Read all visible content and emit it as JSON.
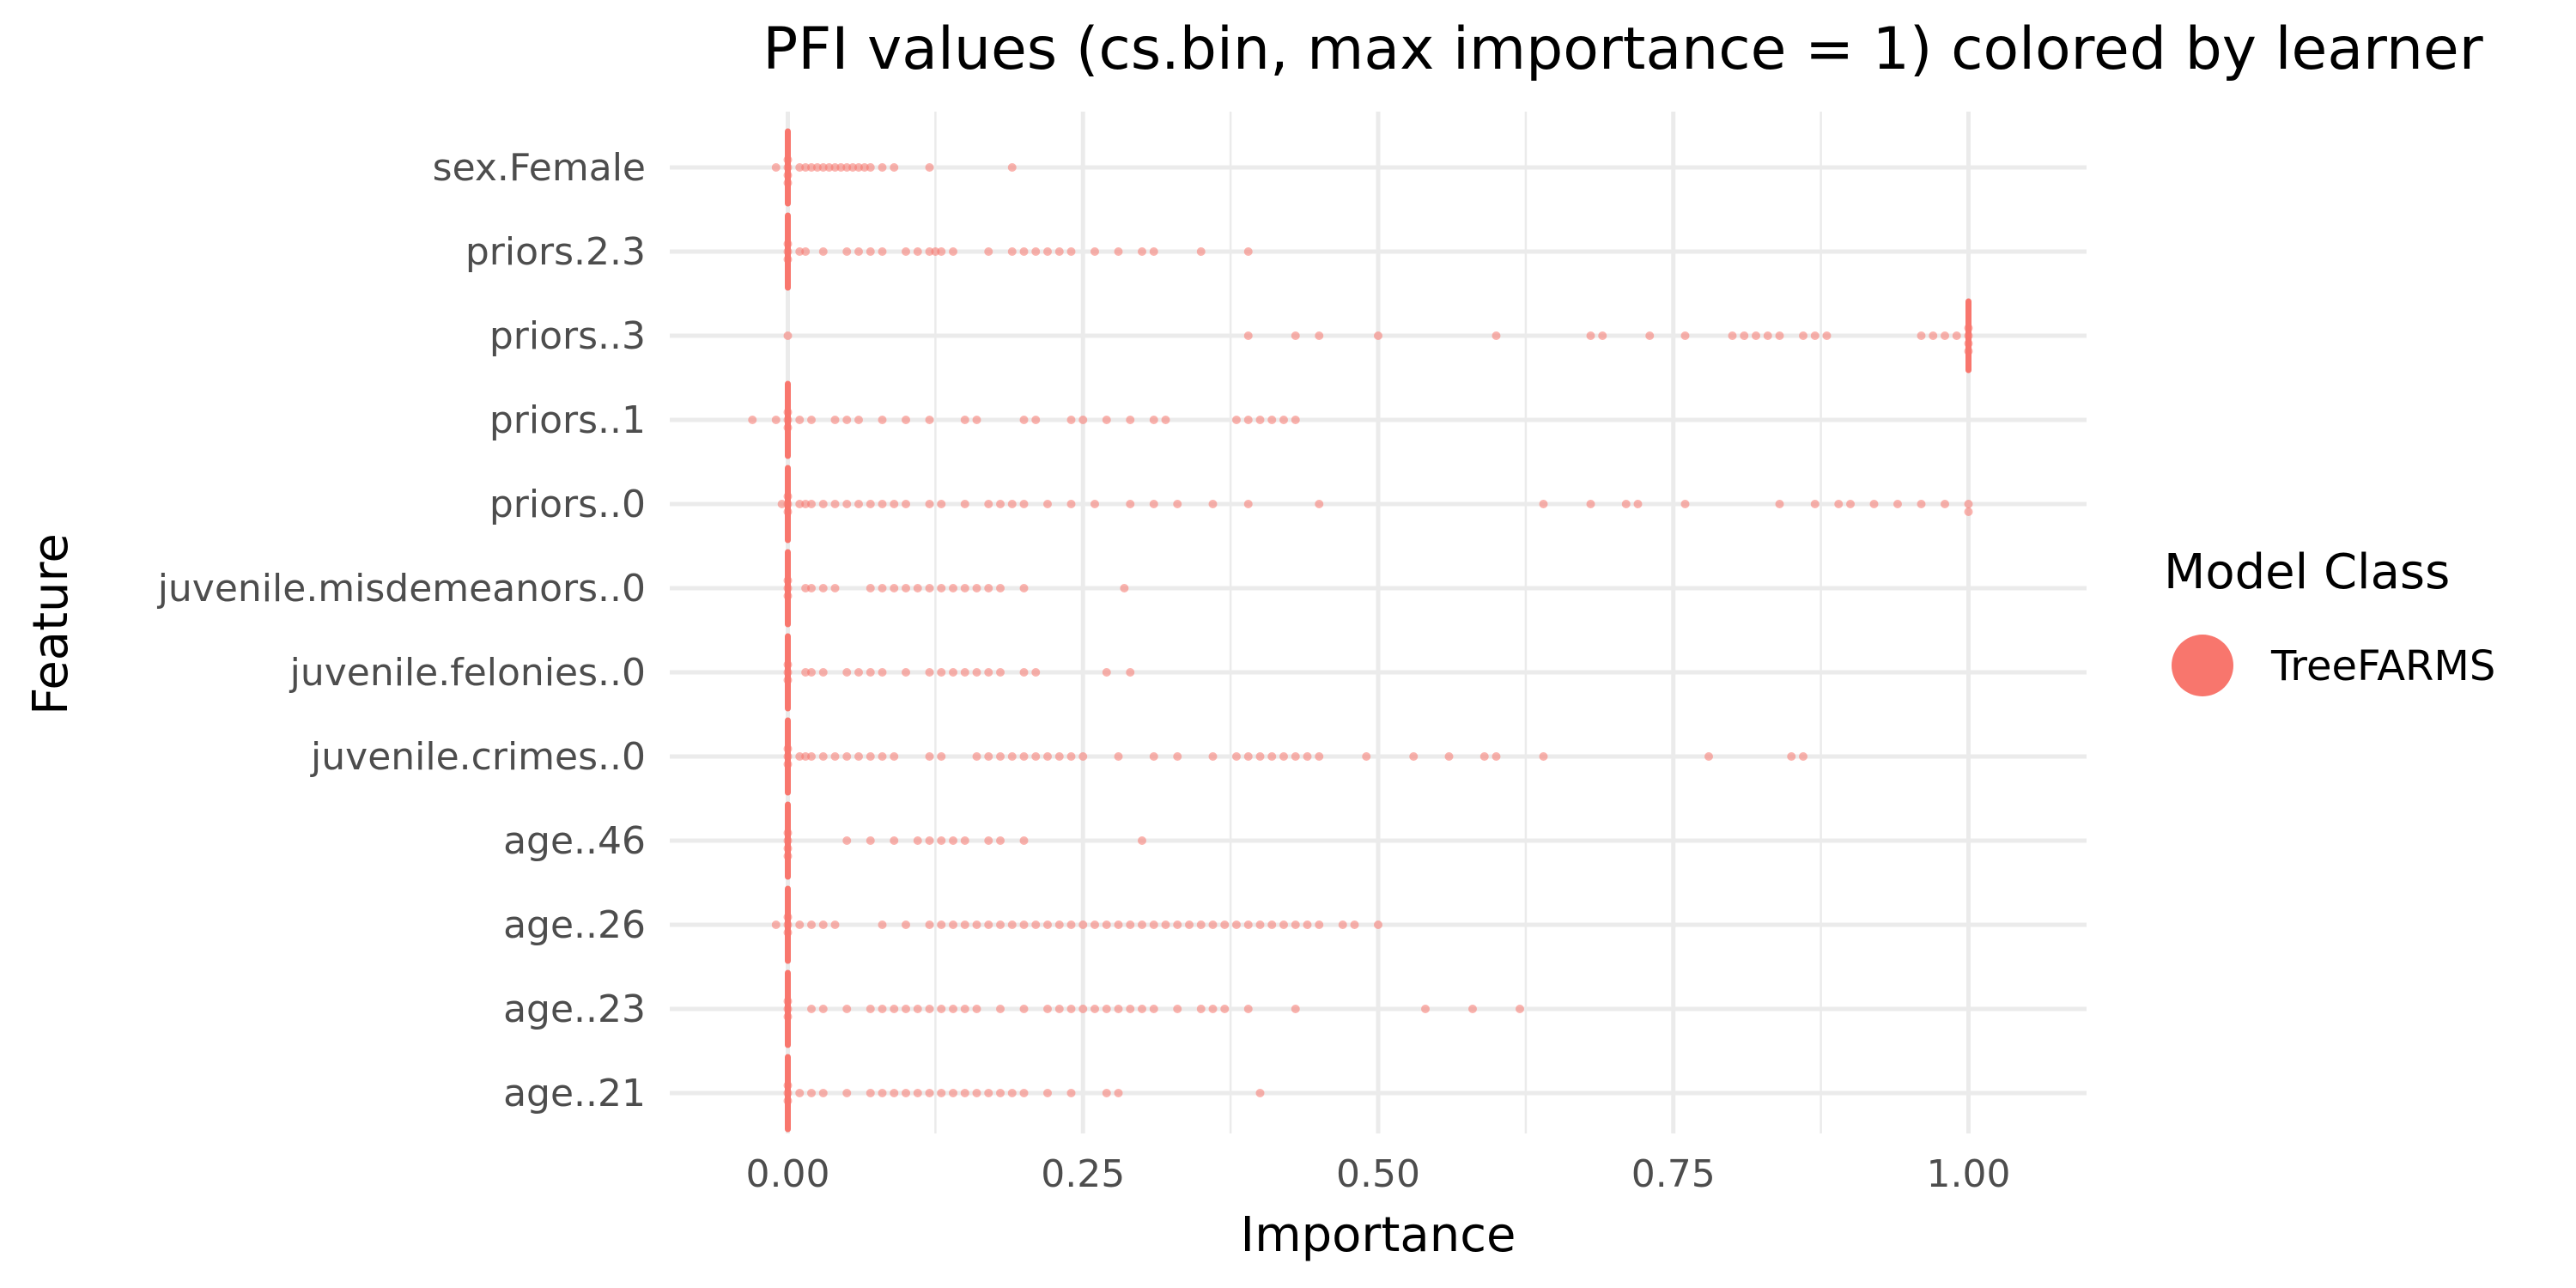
{
  "chart_data": {
    "type": "scatter",
    "title": "PFI values (cs.bin, max importance = 1) colored by learner",
    "xlabel": "Importance",
    "ylabel": "Feature",
    "xlim": [
      -0.1,
      1.1
    ],
    "x_ticks": [
      0.0,
      0.25,
      0.5,
      0.75,
      1.0
    ],
    "x_tick_labels": [
      "0.00",
      "0.25",
      "0.50",
      "0.75",
      "1.00"
    ],
    "categories": [
      "sex.Female",
      "priors.2.3",
      "priors..3",
      "priors..1",
      "priors..0",
      "juvenile.misdemeanors..0",
      "juvenile.felonies..0",
      "juvenile.crimes..0",
      "age..46",
      "age..26",
      "age..23",
      "age..21"
    ],
    "grid": true,
    "legend": {
      "title": "Model Class",
      "placement": "right",
      "entries": [
        {
          "name": "TreeFARMS",
          "color": "#F8766D"
        }
      ]
    },
    "series": [
      {
        "name": "TreeFARMS",
        "color": "#F8766D",
        "points": {
          "sex.Female": [
            0,
            0,
            0,
            0,
            -0.01,
            0.01,
            0.015,
            0.02,
            0.025,
            0.03,
            0.035,
            0.04,
            0.045,
            0.05,
            0.055,
            0.06,
            0.065,
            0.07,
            0.08,
            0.09,
            0.12,
            0.19
          ],
          "priors.2.3": [
            0,
            0,
            0,
            0.01,
            0.015,
            0.03,
            0.05,
            0.06,
            0.07,
            0.08,
            0.1,
            0.11,
            0.12,
            0.125,
            0.13,
            0.14,
            0.17,
            0.19,
            0.2,
            0.21,
            0.22,
            0.23,
            0.24,
            0.26,
            0.28,
            0.3,
            0.31,
            0.35,
            0.39
          ],
          "priors..3": [
            0,
            0.39,
            0.43,
            0.45,
            0.5,
            0.6,
            0.68,
            0.69,
            0.73,
            0.76,
            0.8,
            0.81,
            0.82,
            0.83,
            0.84,
            0.86,
            0.87,
            0.88,
            0.96,
            0.97,
            0.98,
            0.99,
            1.0,
            1.0,
            1.0,
            1.0
          ],
          "priors..1": [
            0,
            0,
            0,
            -0.01,
            -0.03,
            0.01,
            0.02,
            0.04,
            0.05,
            0.06,
            0.08,
            0.1,
            0.12,
            0.15,
            0.16,
            0.2,
            0.21,
            0.24,
            0.25,
            0.27,
            0.29,
            0.31,
            0.32,
            0.38,
            0.39,
            0.4,
            0.41,
            0.42,
            0.43
          ],
          "priors..0": [
            0,
            0,
            0,
            -0.005,
            0.01,
            0.015,
            0.02,
            0.03,
            0.04,
            0.05,
            0.06,
            0.07,
            0.08,
            0.09,
            0.1,
            0.12,
            0.13,
            0.15,
            0.17,
            0.18,
            0.19,
            0.2,
            0.22,
            0.24,
            0.26,
            0.29,
            0.31,
            0.33,
            0.36,
            0.39,
            0.45,
            0.64,
            0.68,
            0.71,
            0.72,
            0.76,
            0.84,
            0.87,
            0.89,
            0.9,
            0.92,
            0.94,
            0.96,
            0.98,
            1.0,
            1.0
          ],
          "juvenile.misdemeanors..0": [
            0,
            0,
            0,
            0.015,
            0.02,
            0.03,
            0.04,
            0.07,
            0.08,
            0.09,
            0.1,
            0.11,
            0.12,
            0.13,
            0.14,
            0.15,
            0.16,
            0.17,
            0.18,
            0.2,
            0.285
          ],
          "juvenile.felonies..0": [
            0,
            0,
            0,
            0.015,
            0.02,
            0.03,
            0.05,
            0.06,
            0.07,
            0.08,
            0.1,
            0.12,
            0.13,
            0.14,
            0.15,
            0.16,
            0.17,
            0.18,
            0.2,
            0.21,
            0.27,
            0.29
          ],
          "juvenile.crimes..0": [
            0,
            0,
            0,
            0.01,
            0.015,
            0.02,
            0.03,
            0.04,
            0.05,
            0.06,
            0.07,
            0.08,
            0.09,
            0.12,
            0.13,
            0.16,
            0.17,
            0.18,
            0.19,
            0.2,
            0.21,
            0.22,
            0.23,
            0.24,
            0.25,
            0.28,
            0.31,
            0.33,
            0.36,
            0.38,
            0.39,
            0.4,
            0.41,
            0.42,
            0.43,
            0.44,
            0.45,
            0.49,
            0.53,
            0.56,
            0.59,
            0.6,
            0.64,
            0.78,
            0.85,
            0.86
          ],
          "age..46": [
            0,
            0,
            0,
            0,
            0.05,
            0.07,
            0.09,
            0.11,
            0.12,
            0.13,
            0.14,
            0.15,
            0.17,
            0.18,
            0.2,
            0.3
          ],
          "age..26": [
            0,
            0,
            0,
            -0.01,
            0.01,
            0.02,
            0.03,
            0.04,
            0.08,
            0.1,
            0.12,
            0.13,
            0.14,
            0.15,
            0.16,
            0.17,
            0.18,
            0.19,
            0.2,
            0.21,
            0.22,
            0.23,
            0.24,
            0.25,
            0.26,
            0.27,
            0.28,
            0.29,
            0.3,
            0.31,
            0.32,
            0.33,
            0.34,
            0.35,
            0.36,
            0.37,
            0.38,
            0.39,
            0.4,
            0.41,
            0.42,
            0.43,
            0.44,
            0.45,
            0.47,
            0.48,
            0.5
          ],
          "age..23": [
            0,
            0,
            0,
            0.02,
            0.03,
            0.05,
            0.07,
            0.08,
            0.09,
            0.1,
            0.11,
            0.12,
            0.13,
            0.14,
            0.15,
            0.16,
            0.18,
            0.2,
            0.22,
            0.23,
            0.24,
            0.25,
            0.26,
            0.27,
            0.28,
            0.29,
            0.3,
            0.31,
            0.33,
            0.35,
            0.36,
            0.37,
            0.39,
            0.43,
            0.54,
            0.58,
            0.62
          ],
          "age..21": [
            0,
            0,
            0,
            0.01,
            0.02,
            0.03,
            0.05,
            0.07,
            0.08,
            0.09,
            0.1,
            0.11,
            0.12,
            0.13,
            0.14,
            0.15,
            0.16,
            0.17,
            0.18,
            0.19,
            0.2,
            0.22,
            0.24,
            0.27,
            0.28,
            0.4
          ]
        }
      }
    ]
  }
}
